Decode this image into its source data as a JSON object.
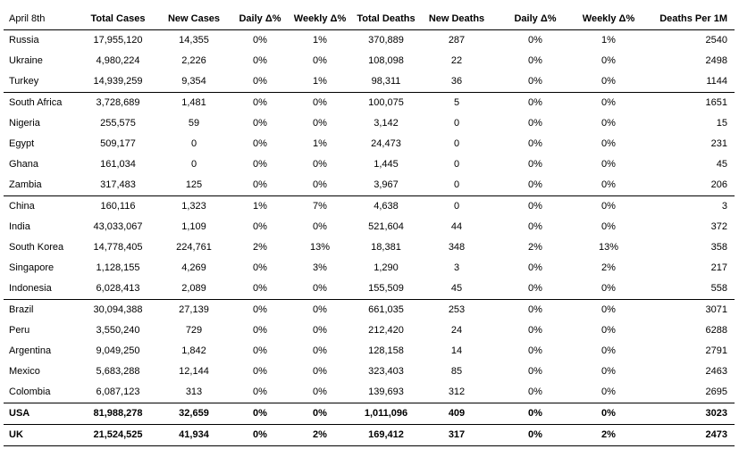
{
  "header": [
    "April 8th",
    "Total Cases",
    "New Cases",
    "Daily Δ%",
    "Weekly Δ%",
    "Total Deaths",
    "New Deaths",
    "Daily Δ%",
    "Weekly Δ%",
    "Deaths Per 1M"
  ],
  "rows": [
    [
      "Russia",
      "17,955,120",
      "14,355",
      "0%",
      "1%",
      "370,889",
      "287",
      "0%",
      "1%",
      "2540"
    ],
    [
      "Ukraine",
      "4,980,224",
      "2,226",
      "0%",
      "0%",
      "108,098",
      "22",
      "0%",
      "0%",
      "2498"
    ],
    [
      "Turkey",
      "14,939,259",
      "9,354",
      "0%",
      "1%",
      "98,311",
      "36",
      "0%",
      "0%",
      "1144"
    ],
    [
      "South Africa",
      "3,728,689",
      "1,481",
      "0%",
      "0%",
      "100,075",
      "5",
      "0%",
      "0%",
      "1651"
    ],
    [
      "Nigeria",
      "255,575",
      "59",
      "0%",
      "0%",
      "3,142",
      "0",
      "0%",
      "0%",
      "15"
    ],
    [
      "Egypt",
      "509,177",
      "0",
      "0%",
      "1%",
      "24,473",
      "0",
      "0%",
      "0%",
      "231"
    ],
    [
      "Ghana",
      "161,034",
      "0",
      "0%",
      "0%",
      "1,445",
      "0",
      "0%",
      "0%",
      "45"
    ],
    [
      "Zambia",
      "317,483",
      "125",
      "0%",
      "0%",
      "3,967",
      "0",
      "0%",
      "0%",
      "206"
    ],
    [
      "China",
      "160,116",
      "1,323",
      "1%",
      "7%",
      "4,638",
      "0",
      "0%",
      "0%",
      "3"
    ],
    [
      "India",
      "43,033,067",
      "1,109",
      "0%",
      "0%",
      "521,604",
      "44",
      "0%",
      "0%",
      "372"
    ],
    [
      "South Korea",
      "14,778,405",
      "224,761",
      "2%",
      "13%",
      "18,381",
      "348",
      "2%",
      "13%",
      "358"
    ],
    [
      "Singapore",
      "1,128,155",
      "4,269",
      "0%",
      "3%",
      "1,290",
      "3",
      "0%",
      "2%",
      "217"
    ],
    [
      "Indonesia",
      "6,028,413",
      "2,089",
      "0%",
      "0%",
      "155,509",
      "45",
      "0%",
      "0%",
      "558"
    ],
    [
      "Brazil",
      "30,094,388",
      "27,139",
      "0%",
      "0%",
      "661,035",
      "253",
      "0%",
      "0%",
      "3071"
    ],
    [
      "Peru",
      "3,550,240",
      "729",
      "0%",
      "0%",
      "212,420",
      "24",
      "0%",
      "0%",
      "6288"
    ],
    [
      "Argentina",
      "9,049,250",
      "1,842",
      "0%",
      "0%",
      "128,158",
      "14",
      "0%",
      "0%",
      "2791"
    ],
    [
      "Mexico",
      "5,683,288",
      "12,144",
      "0%",
      "0%",
      "323,403",
      "85",
      "0%",
      "0%",
      "2463"
    ],
    [
      "Colombia",
      "6,087,123",
      "313",
      "0%",
      "0%",
      "139,693",
      "312",
      "0%",
      "0%",
      "2695"
    ],
    [
      "USA",
      "81,988,278",
      "32,659",
      "0%",
      "0%",
      "1,011,096",
      "409",
      "0%",
      "0%",
      "3023"
    ],
    [
      "UK",
      "21,524,525",
      "41,934",
      "0%",
      "2%",
      "169,412",
      "317",
      "0%",
      "2%",
      "2473"
    ]
  ]
}
